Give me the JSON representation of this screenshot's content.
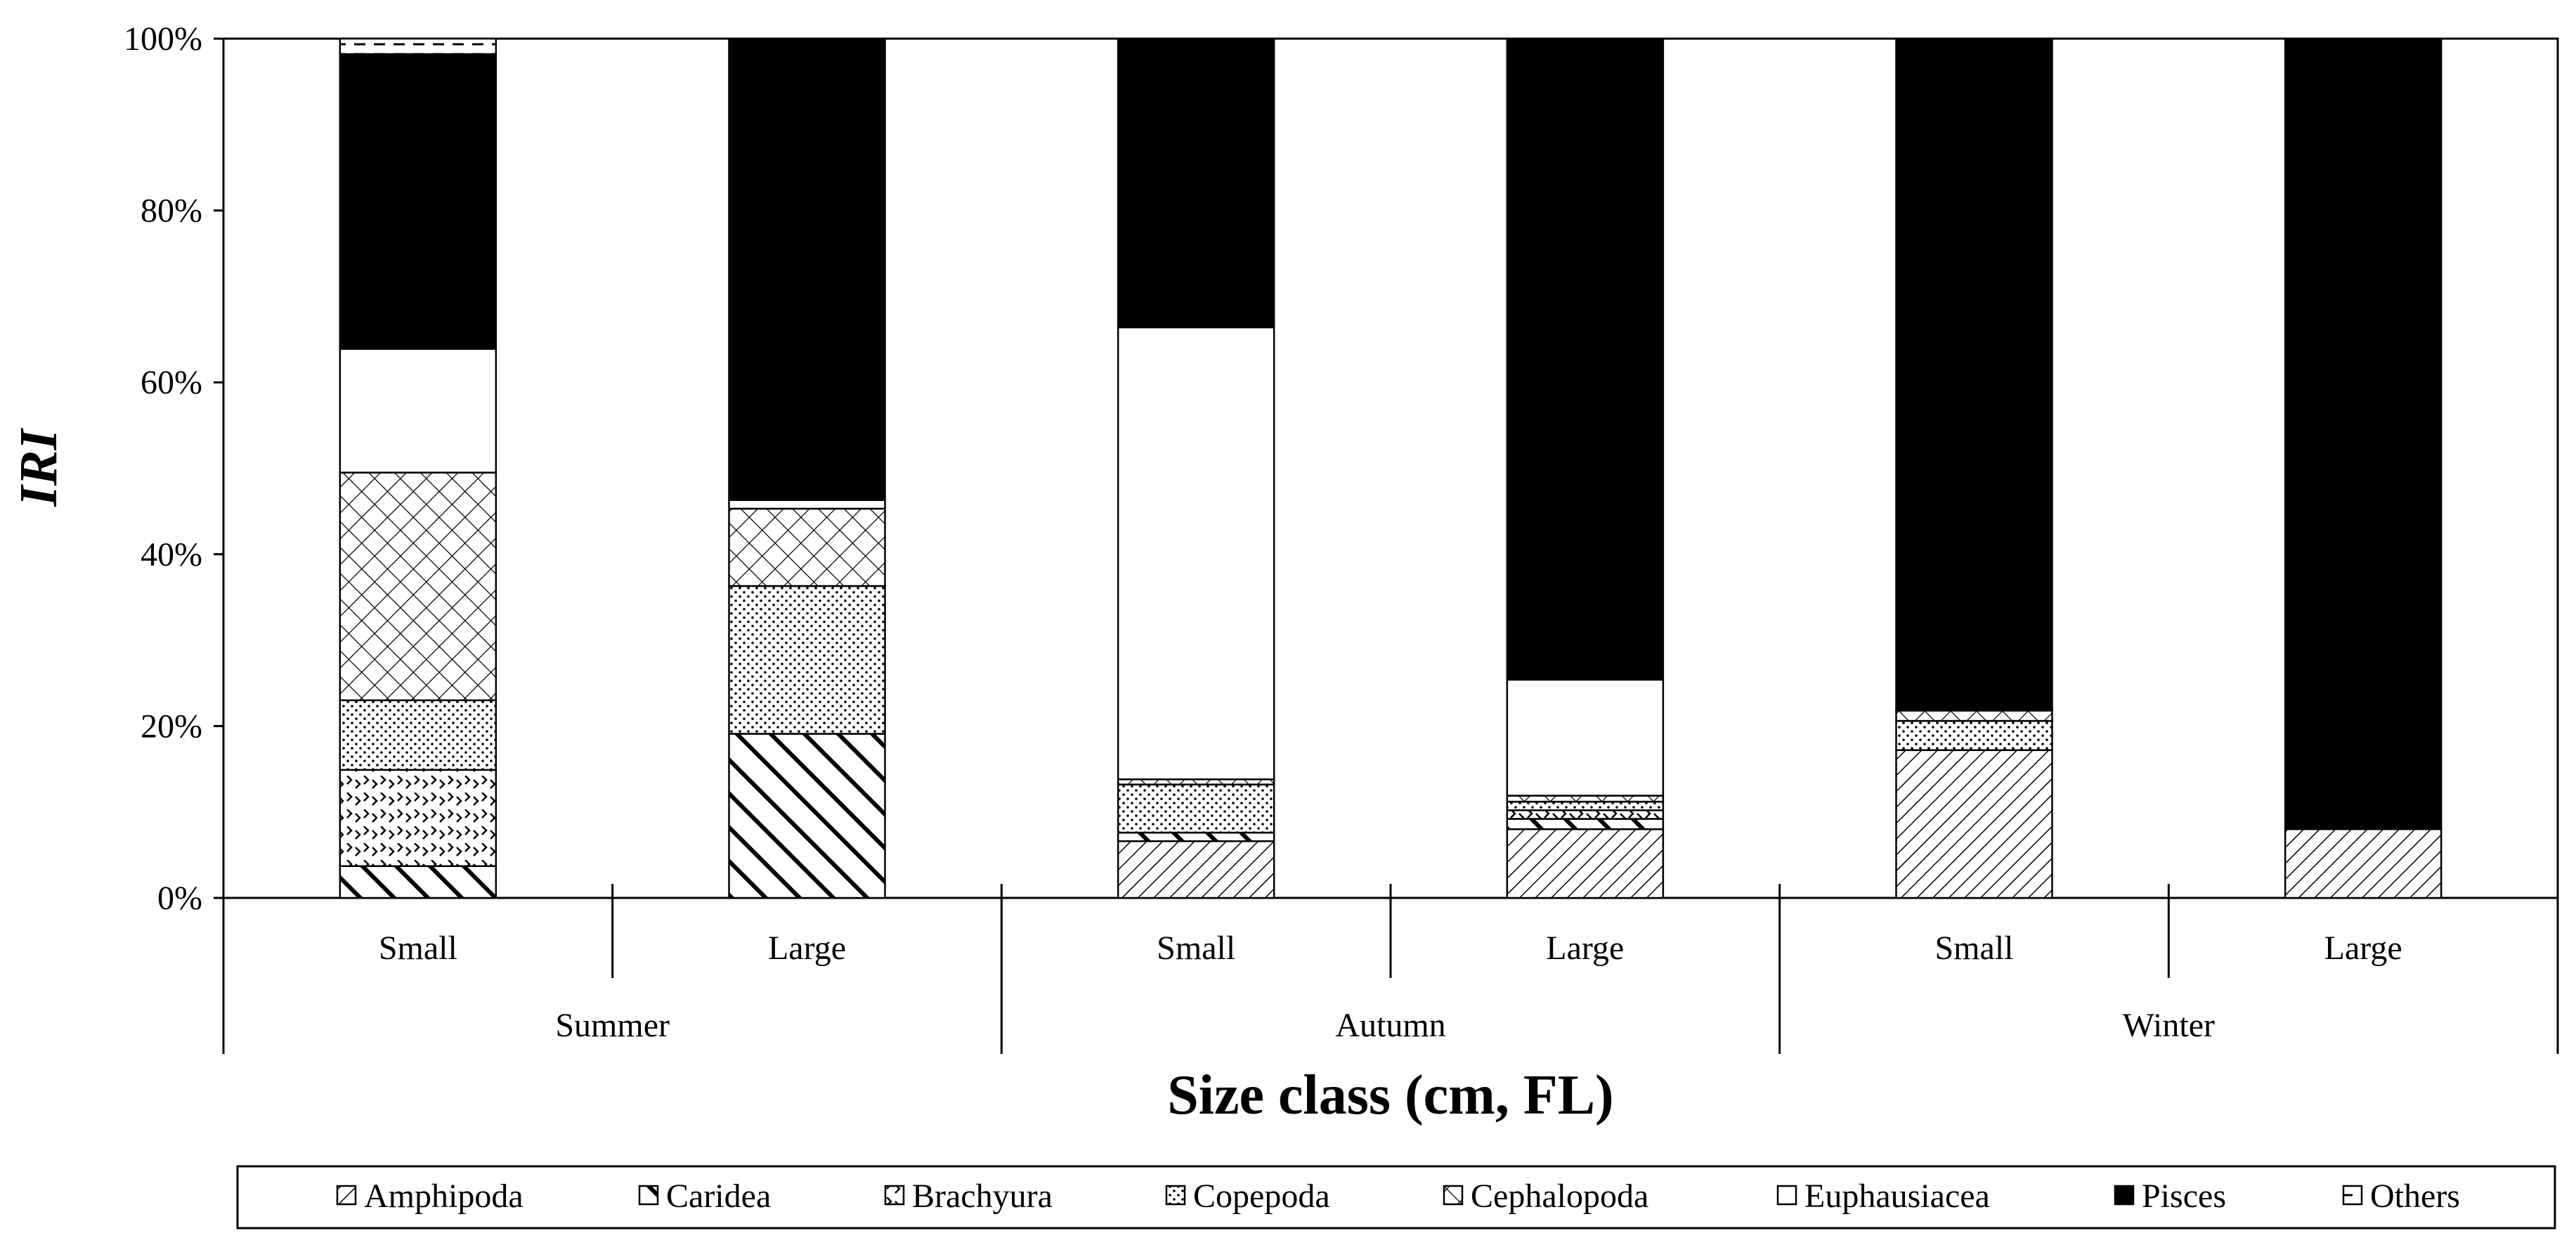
{
  "chart_data": {
    "type": "bar",
    "stacked": true,
    "normalized": true,
    "title": "",
    "xlabel": "Size class (cm, FL)",
    "ylabel": "IRI",
    "ylim": [
      0,
      100
    ],
    "yticks": [
      "0%",
      "20%",
      "40%",
      "60%",
      "80%",
      "100%"
    ],
    "grid": false,
    "legend_position": "bottom",
    "groups": [
      {
        "label": "Summer",
        "categories": [
          "Small",
          "Large"
        ]
      },
      {
        "label": "Autumn",
        "categories": [
          "Small",
          "Large"
        ]
      },
      {
        "label": "Winter",
        "categories": [
          "Small",
          "Large"
        ]
      }
    ],
    "categories": [
      "Summer Small",
      "Summer Large",
      "Autumn Small",
      "Autumn Large",
      "Winter Small",
      "Winter Large"
    ],
    "series": [
      {
        "name": "Amphipoda",
        "pattern": "dense-diagonal-hatch",
        "values": [
          0,
          0,
          6.6,
          8.0,
          17.2,
          8.0
        ]
      },
      {
        "name": "Caridea",
        "pattern": "bold-diagonal-hatch",
        "values": [
          3.7,
          19.1,
          1.0,
          1.2,
          0,
          0
        ]
      },
      {
        "name": "Brachyura",
        "pattern": "chevrons",
        "values": [
          11.2,
          0,
          0,
          1.0,
          0,
          0
        ]
      },
      {
        "name": "Copepoda",
        "pattern": "fine-dots",
        "values": [
          8.1,
          17.2,
          5.6,
          1.0,
          3.4,
          0
        ]
      },
      {
        "name": "Cephalopoda",
        "pattern": "crosshatch",
        "values": [
          26.5,
          9.0,
          0.6,
          0.7,
          1.2,
          0
        ]
      },
      {
        "name": "Euphausiacea",
        "pattern": "white",
        "values": [
          14.4,
          1.0,
          52.6,
          13.5,
          0.2,
          0
        ]
      },
      {
        "name": "Pisces",
        "pattern": "solid-black",
        "values": [
          34.3,
          53.7,
          33.6,
          74.6,
          78.0,
          92.0
        ]
      },
      {
        "name": "Others",
        "pattern": "dashed",
        "values": [
          1.8,
          0,
          0,
          0,
          0,
          0
        ]
      }
    ]
  }
}
